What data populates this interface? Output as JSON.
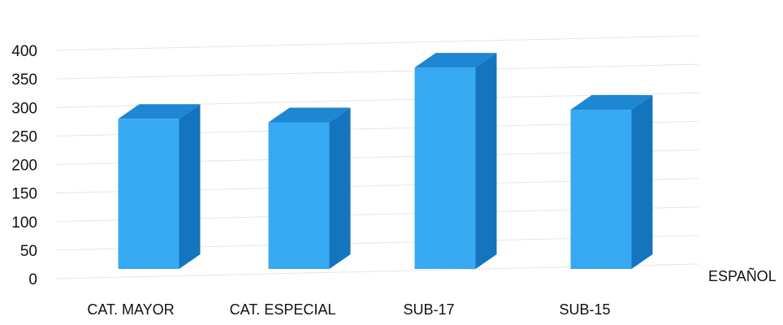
{
  "chart_data": {
    "type": "bar",
    "style": "3d-column",
    "categories": [
      "CAT. MAYOR",
      "CAT. ESPECIAL",
      "SUB-17",
      "SUB-15"
    ],
    "series": [
      {
        "name": "ESPAÑOL",
        "values": [
          280,
          274,
          370,
          296
        ]
      }
    ],
    "title": "",
    "xlabel": "",
    "ylabel": "",
    "ylim": [
      0,
      400
    ],
    "yticks": [
      0,
      50,
      100,
      150,
      200,
      250,
      300,
      350,
      400
    ],
    "grid": true,
    "legend": "none",
    "colors": {
      "front": "#36a9f2",
      "side": "#1574be",
      "top": "#1e86d2",
      "grid": "#e6e6e6"
    }
  }
}
